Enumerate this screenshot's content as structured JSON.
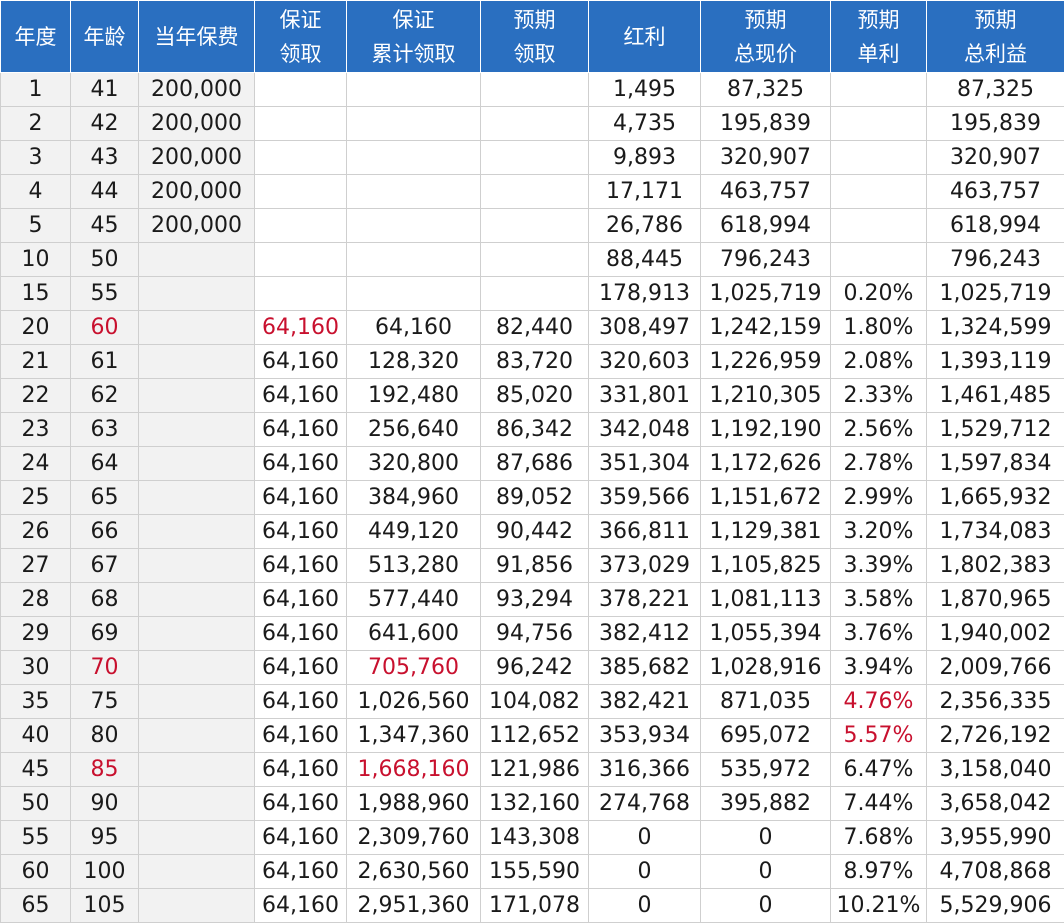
{
  "headers": [
    "年度",
    "年龄",
    "当年保费",
    "保证\n领取",
    "保证\n累计领取",
    "预期\n领取",
    "红利",
    "预期\n总现价",
    "预期\n单利",
    "预期\n总利益"
  ],
  "rows": [
    [
      "1",
      "41",
      "200,000",
      "",
      "",
      "",
      "1,495",
      "87,325",
      "",
      "87,325"
    ],
    [
      "2",
      "42",
      "200,000",
      "",
      "",
      "",
      "4,735",
      "195,839",
      "",
      "195,839"
    ],
    [
      "3",
      "43",
      "200,000",
      "",
      "",
      "",
      "9,893",
      "320,907",
      "",
      "320,907"
    ],
    [
      "4",
      "44",
      "200,000",
      "",
      "",
      "",
      "17,171",
      "463,757",
      "",
      "463,757"
    ],
    [
      "5",
      "45",
      "200,000",
      "",
      "",
      "",
      "26,786",
      "618,994",
      "",
      "618,994"
    ],
    [
      "10",
      "50",
      "",
      "",
      "",
      "",
      "88,445",
      "796,243",
      "",
      "796,243"
    ],
    [
      "15",
      "55",
      "",
      "",
      "",
      "",
      "178,913",
      "1,025,719",
      "0.20%",
      "1,025,719"
    ],
    [
      "20",
      "60",
      "",
      "64,160",
      "64,160",
      "82,440",
      "308,497",
      "1,242,159",
      "1.80%",
      "1,324,599"
    ],
    [
      "21",
      "61",
      "",
      "64,160",
      "128,320",
      "83,720",
      "320,603",
      "1,226,959",
      "2.08%",
      "1,393,119"
    ],
    [
      "22",
      "62",
      "",
      "64,160",
      "192,480",
      "85,020",
      "331,801",
      "1,210,305",
      "2.33%",
      "1,461,485"
    ],
    [
      "23",
      "63",
      "",
      "64,160",
      "256,640",
      "86,342",
      "342,048",
      "1,192,190",
      "2.56%",
      "1,529,712"
    ],
    [
      "24",
      "64",
      "",
      "64,160",
      "320,800",
      "87,686",
      "351,304",
      "1,172,626",
      "2.78%",
      "1,597,834"
    ],
    [
      "25",
      "65",
      "",
      "64,160",
      "384,960",
      "89,052",
      "359,566",
      "1,151,672",
      "2.99%",
      "1,665,932"
    ],
    [
      "26",
      "66",
      "",
      "64,160",
      "449,120",
      "90,442",
      "366,811",
      "1,129,381",
      "3.20%",
      "1,734,083"
    ],
    [
      "27",
      "67",
      "",
      "64,160",
      "513,280",
      "91,856",
      "373,029",
      "1,105,825",
      "3.39%",
      "1,802,383"
    ],
    [
      "28",
      "68",
      "",
      "64,160",
      "577,440",
      "93,294",
      "378,221",
      "1,081,113",
      "3.58%",
      "1,870,965"
    ],
    [
      "29",
      "69",
      "",
      "64,160",
      "641,600",
      "94,756",
      "382,412",
      "1,055,394",
      "3.76%",
      "1,940,002"
    ],
    [
      "30",
      "70",
      "",
      "64,160",
      "705,760",
      "96,242",
      "385,682",
      "1,028,916",
      "3.94%",
      "2,009,766"
    ],
    [
      "35",
      "75",
      "",
      "64,160",
      "1,026,560",
      "104,082",
      "382,421",
      "871,035",
      "4.76%",
      "2,356,335"
    ],
    [
      "40",
      "80",
      "",
      "64,160",
      "1,347,360",
      "112,652",
      "353,934",
      "695,072",
      "5.57%",
      "2,726,192"
    ],
    [
      "45",
      "85",
      "",
      "64,160",
      "1,668,160",
      "121,986",
      "316,366",
      "535,972",
      "6.47%",
      "3,158,040"
    ],
    [
      "50",
      "90",
      "",
      "64,160",
      "1,988,960",
      "132,160",
      "274,768",
      "395,882",
      "7.44%",
      "3,658,042"
    ],
    [
      "55",
      "95",
      "",
      "64,160",
      "2,309,760",
      "143,308",
      "0",
      "0",
      "7.68%",
      "3,955,990"
    ],
    [
      "60",
      "100",
      "",
      "64,160",
      "2,630,560",
      "155,590",
      "0",
      "0",
      "8.97%",
      "4,708,868"
    ],
    [
      "65",
      "105",
      "",
      "64,160",
      "2,951,360",
      "171,078",
      "0",
      "0",
      "10.21%",
      "5,529,906"
    ]
  ],
  "highlights": [
    {
      "row": 7,
      "col": 1
    },
    {
      "row": 7,
      "col": 3
    },
    {
      "row": 17,
      "col": 1
    },
    {
      "row": 17,
      "col": 4
    },
    {
      "row": 18,
      "col": 8
    },
    {
      "row": 19,
      "col": 8
    },
    {
      "row": 20,
      "col": 1
    },
    {
      "row": 20,
      "col": 4
    }
  ],
  "colors": {
    "header_bg": "#2a6fc0",
    "header_text": "#ffffff",
    "highlight_text": "#c8102e",
    "shaded_bg": "#f2f2f2",
    "grid": "#cfcfcf"
  }
}
